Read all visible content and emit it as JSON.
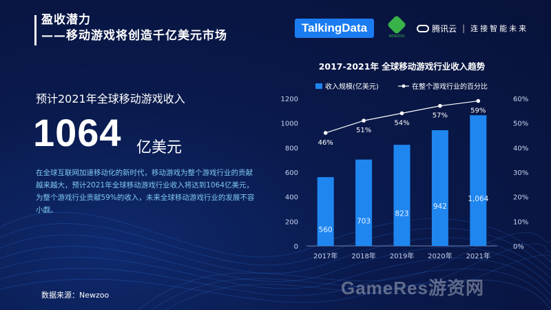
{
  "header": {
    "title_line1": "盈收潜力",
    "title_line2": "——移动游戏将创造千亿美元市场"
  },
  "logos": {
    "talkingdata": "TalkingData",
    "newzoo": "NEWZOO",
    "tencent_cloud": "腾讯云",
    "tencent_slogan": "连接智能未来"
  },
  "left": {
    "subhead": "预计2021年全球移动游戏收入",
    "big_number": "1064",
    "big_unit": "亿美元",
    "description": "在全球互联网加速移动化的新时代，移动游戏为整个游戏行业的贡献越来越大，预计2021年全球移动游戏行业收入将达到1064亿美元，为整个游戏行业贡献59%的收入，未来全球移动游戏行业的发展不容小觑。",
    "source": "数据来源：Newzoo"
  },
  "watermark": "GameRes游资网",
  "colors": {
    "bar": "#1f86f0",
    "line": "#ffffff",
    "accent_text": "#7ec8f0"
  },
  "chart_data": {
    "type": "bar",
    "title": "2017-2021年  全球移动游戏行业收入趋势",
    "categories": [
      "2017年",
      "2018年",
      "2019年",
      "2020年",
      "2021年"
    ],
    "series": [
      {
        "name": "收入规模(亿美元)",
        "type": "bar",
        "values": [
          560,
          703,
          823,
          942,
          1064
        ],
        "labels": [
          "560",
          "703",
          "823",
          "942",
          "1,064"
        ]
      },
      {
        "name": "在整个游戏行业的百分比",
        "type": "line",
        "axis": "right",
        "values": [
          46,
          51,
          54,
          57,
          59
        ],
        "labels": [
          "46%",
          "51%",
          "54%",
          "57%",
          "59%"
        ]
      }
    ],
    "y_left": {
      "ylim": [
        0,
        1200
      ],
      "ticks": [
        "0",
        "200",
        "400",
        "600",
        "800",
        "1000",
        "1200"
      ]
    },
    "y_right": {
      "ylim": [
        0,
        60
      ],
      "ticks": [
        "0%",
        "10%",
        "20%",
        "30%",
        "40%",
        "50%",
        "60%"
      ]
    },
    "legend": "top",
    "grid": false
  }
}
